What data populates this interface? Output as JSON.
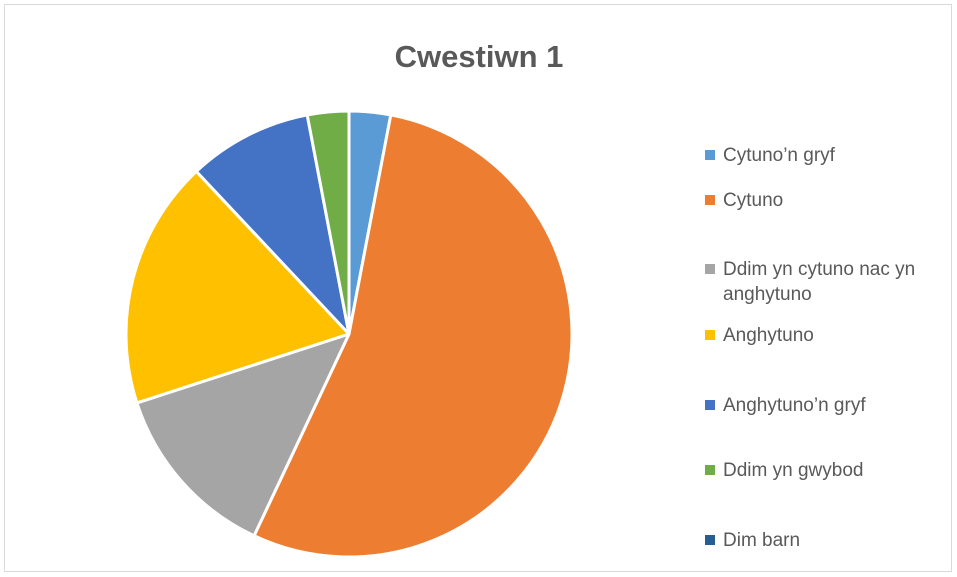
{
  "chart_data": {
    "type": "pie",
    "title": "Cwestiwn 1",
    "legend_position": "right",
    "slices": [
      {
        "label": "Cytuno’n gryf",
        "value": 3,
        "color": "#5b9bd5"
      },
      {
        "label": "Cytuno",
        "value": 54,
        "color": "#ed7d31"
      },
      {
        "label": "Ddim yn cytuno nac yn anghytuno",
        "value": 13,
        "color": "#a5a5a5"
      },
      {
        "label": "Anghytuno",
        "value": 18,
        "color": "#ffc000"
      },
      {
        "label": "Anghytuno’n gryf",
        "value": 9,
        "color": "#4472c4"
      },
      {
        "label": "Ddim yn gwybod",
        "value": 3,
        "color": "#70ad47"
      },
      {
        "label": "Dim barn",
        "value": 0,
        "color": "#255e91"
      }
    ]
  }
}
